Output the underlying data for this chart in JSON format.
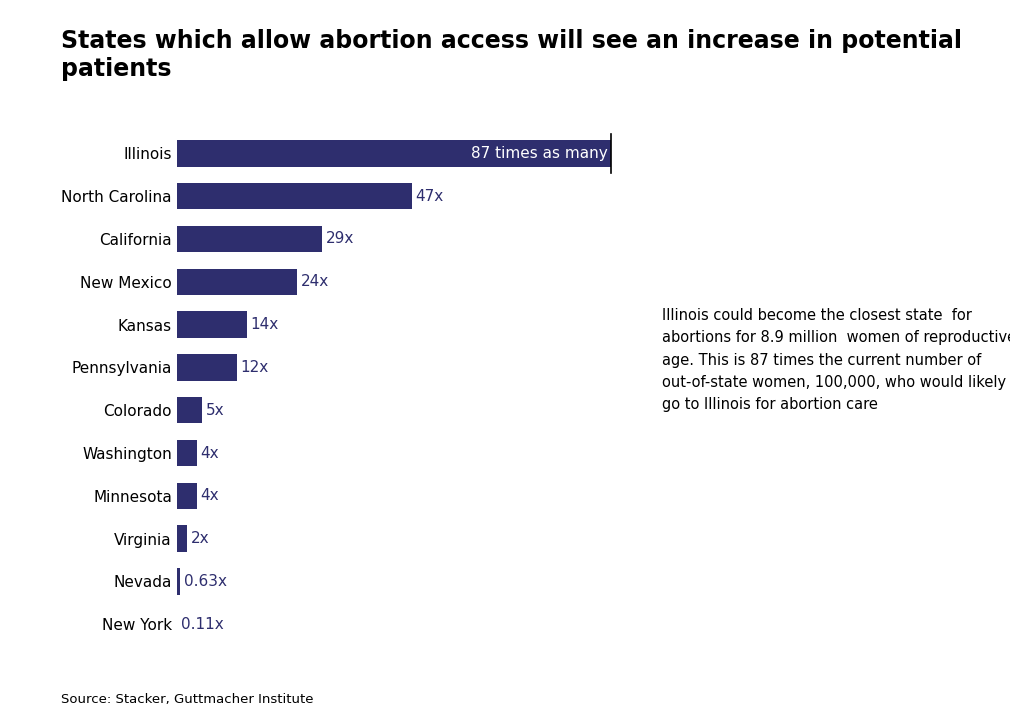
{
  "title": "States which allow abortion access will see an increase in potential patients",
  "states": [
    "Illinois",
    "North Carolina",
    "California",
    "New Mexico",
    "Kansas",
    "Pennsylvania",
    "Colorado",
    "Washington",
    "Minnesota",
    "Virginia",
    "Nevada",
    "New York"
  ],
  "values": [
    87,
    47,
    29,
    24,
    14,
    12,
    5,
    4,
    4,
    2,
    0.63,
    0.11
  ],
  "labels": [
    "87 times as many",
    "47x",
    "29x",
    "24x",
    "14x",
    "12x",
    "5x",
    "4x",
    "4x",
    "2x",
    "0.63x",
    "0.11x"
  ],
  "bar_color": "#2e2e6e",
  "label_color_inside": "#ffffff",
  "label_color_outside": "#2e2e6e",
  "background_color": "#ffffff",
  "annotation_text": "Illinois could become the closest state  for\nabortions for 8.9 million  women of reproductive\nage. This is 87 times the current number of\nout-of-state women, 100,000, who would likely\ngo to Illinois for abortion care",
  "source_text": "Source: Stacker, Guttmacher Institute",
  "title_fontsize": 17,
  "label_fontsize": 11,
  "state_fontsize": 11,
  "source_fontsize": 9.5,
  "annotation_fontsize": 10.5,
  "xlim": [
    0,
    95
  ],
  "vline_x": 87
}
